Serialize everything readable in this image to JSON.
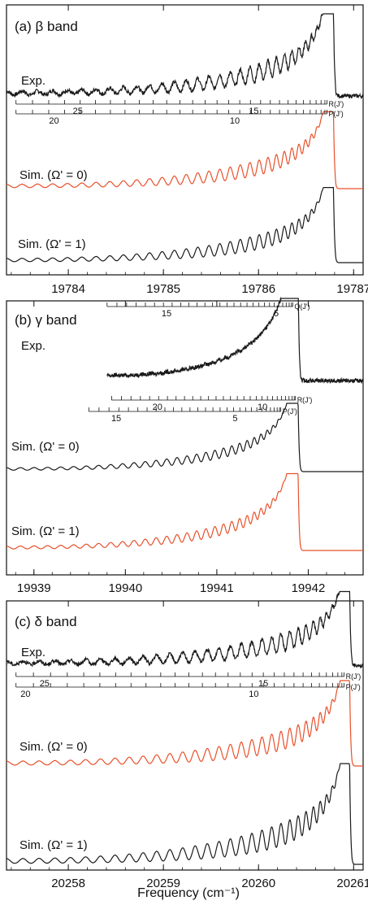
{
  "colors": {
    "black": "#1a1a1a",
    "orange": "#e8502a"
  },
  "x_axis_label": "Frequency (cm⁻¹)",
  "chart_data": [
    {
      "type": "line",
      "title": "(a) β band",
      "xlim": [
        19783.35,
        19787.1
      ],
      "xticks": [
        19784,
        19785,
        19786,
        19787
      ],
      "x_minor_step": 0.2,
      "band": {
        "edge": 19786.78,
        "shape": "r-head"
      },
      "series": [
        {
          "name": "Exp.",
          "color": "#1a1a1a",
          "kind": "experimental"
        },
        {
          "name": "Sim. (Ω' = 0)",
          "color": "#e8502a",
          "kind": "simulated"
        },
        {
          "name": "Sim. (Ω' = 1)",
          "color": "#1a1a1a",
          "kind": "simulated"
        }
      ],
      "ladders": [
        {
          "name": "R(J')",
          "x_start": 19783.45,
          "x_end": 19786.72,
          "labels": [
            {
              "text": "25",
              "x": 19784.1
            },
            {
              "text": "15",
              "x": 19785.95
            }
          ]
        },
        {
          "name": "P(J')",
          "x_start": 19783.45,
          "x_end": 19786.72,
          "labels": [
            {
              "text": "20",
              "x": 19783.85
            },
            {
              "text": "10",
              "x": 19785.75
            }
          ]
        }
      ]
    },
    {
      "type": "line",
      "title": "(b) γ band",
      "xlim": [
        19938.7,
        19942.6
      ],
      "xticks": [
        19939,
        19940,
        19941,
        19942
      ],
      "x_minor_step": 0.2,
      "band": {
        "edge": 19941.88,
        "shape": "r-head"
      },
      "series": [
        {
          "name": "Exp.",
          "color": "#1a1a1a",
          "kind": "experimental",
          "x_start": 19939.8
        },
        {
          "name": "Sim. (Ω' = 0)",
          "color": "#1a1a1a",
          "kind": "simulated"
        },
        {
          "name": "Sim. (Ω' = 1)",
          "color": "#e8502a",
          "kind": "simulated"
        }
      ],
      "ladders": [
        {
          "name": "Q(J')",
          "x_start": 19939.8,
          "x_end": 19941.83,
          "labels": [
            {
              "text": "15",
              "x": 19940.45
            },
            {
              "text": "5",
              "x": 19941.65
            }
          ]
        },
        {
          "name": "R(J')",
          "x_start": 19939.85,
          "x_end": 19941.86,
          "labels": [
            {
              "text": "20",
              "x": 19940.35
            },
            {
              "text": "10",
              "x": 19941.5
            }
          ]
        },
        {
          "name": "P(J')",
          "x_start": 19939.6,
          "x_end": 19941.7,
          "labels": [
            {
              "text": "15",
              "x": 19939.9
            },
            {
              "text": "5",
              "x": 19941.2
            }
          ]
        }
      ]
    },
    {
      "type": "line",
      "title": "(c) δ band",
      "xlim": [
        20257.35,
        20261.1
      ],
      "xticks": [
        20258,
        20259,
        20260,
        20261
      ],
      "x_minor_step": 0.2,
      "band": {
        "edge": 20260.95,
        "shape": "r-head"
      },
      "series": [
        {
          "name": "Exp.",
          "color": "#1a1a1a",
          "kind": "experimental"
        },
        {
          "name": "Sim. (Ω' = 0)",
          "color": "#e8502a",
          "kind": "simulated"
        },
        {
          "name": "Sim. (Ω' = 1)",
          "color": "#1a1a1a",
          "kind": "simulated"
        }
      ],
      "ladders": [
        {
          "name": "R(J')",
          "x_start": 20257.45,
          "x_end": 20260.9,
          "labels": [
            {
              "text": "25",
              "x": 20257.75
            },
            {
              "text": "15",
              "x": 20260.05
            }
          ]
        },
        {
          "name": "P(J')",
          "x_start": 20257.45,
          "x_end": 20260.9,
          "labels": [
            {
              "text": "20",
              "x": 20257.55
            },
            {
              "text": "10",
              "x": 20259.95
            }
          ]
        }
      ]
    }
  ]
}
